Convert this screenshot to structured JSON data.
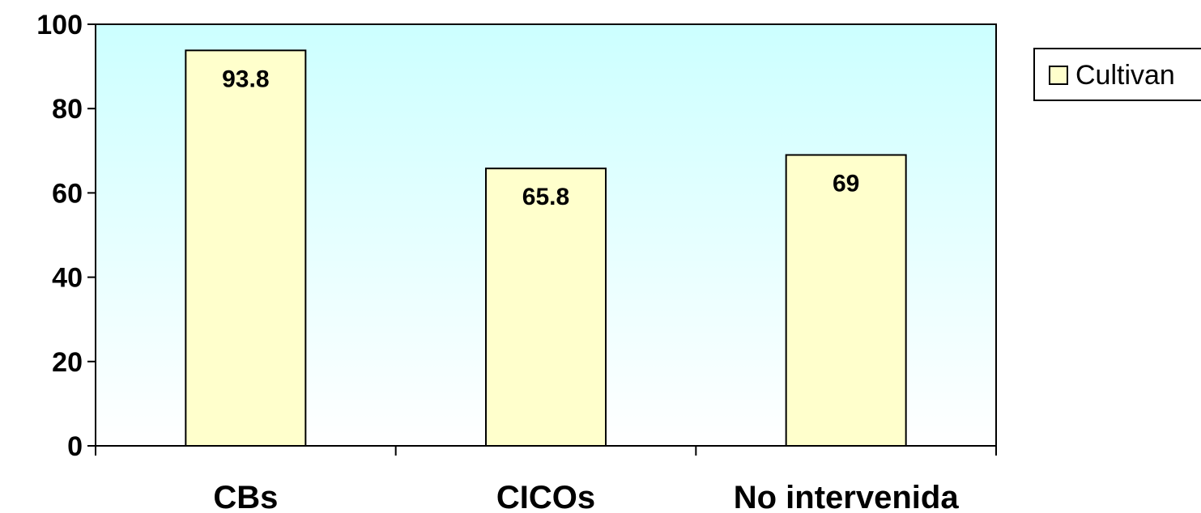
{
  "chart_data": {
    "type": "bar",
    "categories": [
      "CBs",
      "CICOs",
      "No intervenida"
    ],
    "series": [
      {
        "name": "Cultivan",
        "values": [
          93.8,
          65.8,
          69
        ]
      }
    ],
    "data_labels": [
      "93.8",
      "65.8",
      "69"
    ],
    "ylim": [
      0,
      100
    ],
    "yticks": [
      0,
      20,
      40,
      60,
      80,
      100
    ],
    "ytick_labels": [
      "0",
      "20",
      "40",
      "60",
      "80",
      "100"
    ],
    "legend": {
      "position": "top-right",
      "label": "Cultivan"
    },
    "grid": false,
    "colors": {
      "bar_fill": "#ffffcc",
      "bar_stroke": "#000000",
      "plot_bg_top": "#ccffff",
      "plot_bg_bottom": "#ffffff"
    }
  }
}
